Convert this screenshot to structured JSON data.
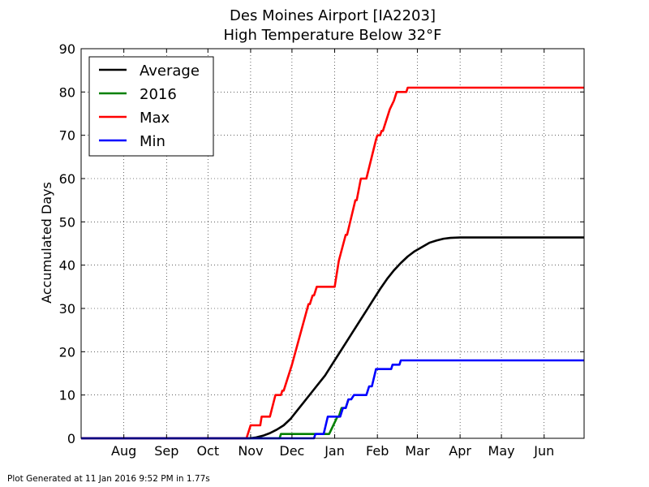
{
  "chart_data": {
    "type": "line",
    "title_lines": [
      "Des Moines Airport [IA2203]",
      "High Temperature Below 32°F"
    ],
    "ylabel": "Accumulated Days",
    "xlabel": "",
    "ylim": [
      0,
      90
    ],
    "yticks": [
      0,
      10,
      20,
      30,
      40,
      50,
      60,
      70,
      80,
      90
    ],
    "xlim_dates": [
      "2015-07-01",
      "2016-06-30"
    ],
    "xticks": [
      {
        "label": "Aug",
        "date": "2015-08-01"
      },
      {
        "label": "Sep",
        "date": "2015-09-01"
      },
      {
        "label": "Oct",
        "date": "2015-10-01"
      },
      {
        "label": "Nov",
        "date": "2015-11-01"
      },
      {
        "label": "Dec",
        "date": "2015-12-01"
      },
      {
        "label": "Jan",
        "date": "2016-01-01"
      },
      {
        "label": "Feb",
        "date": "2016-02-01"
      },
      {
        "label": "Mar",
        "date": "2016-03-01"
      },
      {
        "label": "Apr",
        "date": "2016-04-01"
      },
      {
        "label": "May",
        "date": "2016-05-01"
      },
      {
        "label": "Jun",
        "date": "2016-06-01"
      }
    ],
    "grid": true,
    "legend_position": "top-left",
    "series": [
      {
        "name": "Average",
        "color": "#000000",
        "points": [
          [
            "2015-07-01",
            0
          ],
          [
            "2015-10-31",
            0
          ],
          [
            "2015-11-05",
            0.2
          ],
          [
            "2015-11-10",
            0.6
          ],
          [
            "2015-11-15",
            1.2
          ],
          [
            "2015-11-20",
            2
          ],
          [
            "2015-11-25",
            3
          ],
          [
            "2015-11-30",
            4.5
          ],
          [
            "2015-12-05",
            6.5
          ],
          [
            "2015-12-10",
            8.5
          ],
          [
            "2015-12-15",
            10.5
          ],
          [
            "2015-12-20",
            12.5
          ],
          [
            "2015-12-25",
            14.5
          ],
          [
            "2015-12-30",
            17
          ],
          [
            "2016-01-04",
            19.5
          ],
          [
            "2016-01-09",
            22
          ],
          [
            "2016-01-14",
            24.5
          ],
          [
            "2016-01-19",
            27
          ],
          [
            "2016-01-24",
            29.5
          ],
          [
            "2016-01-29",
            32
          ],
          [
            "2016-02-03",
            34.5
          ],
          [
            "2016-02-08",
            36.8
          ],
          [
            "2016-02-13",
            38.8
          ],
          [
            "2016-02-18",
            40.5
          ],
          [
            "2016-02-23",
            42
          ],
          [
            "2016-02-28",
            43.2
          ],
          [
            "2016-03-05",
            44.3
          ],
          [
            "2016-03-10",
            45.2
          ],
          [
            "2016-03-15",
            45.7
          ],
          [
            "2016-03-20",
            46.1
          ],
          [
            "2016-03-25",
            46.3
          ],
          [
            "2016-04-01",
            46.4
          ],
          [
            "2016-06-30",
            46.4
          ]
        ]
      },
      {
        "name": "2016",
        "color": "#008000",
        "points": [
          [
            "2015-07-01",
            0
          ],
          [
            "2015-11-22",
            0
          ],
          [
            "2015-11-23",
            1
          ],
          [
            "2015-12-28",
            1
          ],
          [
            "2016-01-03",
            5
          ],
          [
            "2016-01-04",
            5
          ],
          [
            "2016-01-06",
            7
          ],
          [
            "2016-01-09",
            7
          ],
          [
            "2016-01-11",
            9
          ]
        ]
      },
      {
        "name": "Max",
        "color": "#ff0000",
        "points": [
          [
            "2015-07-01",
            0
          ],
          [
            "2015-10-29",
            0
          ],
          [
            "2015-11-01",
            3
          ],
          [
            "2015-11-08",
            3
          ],
          [
            "2015-11-09",
            5
          ],
          [
            "2015-11-15",
            5
          ],
          [
            "2015-11-19",
            10
          ],
          [
            "2015-11-23",
            10
          ],
          [
            "2015-11-24",
            11
          ],
          [
            "2015-11-25",
            11
          ],
          [
            "2015-12-01",
            17
          ],
          [
            "2015-12-13",
            31
          ],
          [
            "2015-12-14",
            31
          ],
          [
            "2015-12-16",
            33
          ],
          [
            "2015-12-17",
            33
          ],
          [
            "2015-12-19",
            35
          ],
          [
            "2015-12-22",
            35
          ],
          [
            "2016-01-01",
            35
          ],
          [
            "2016-01-04",
            41
          ],
          [
            "2016-01-09",
            47
          ],
          [
            "2016-01-10",
            47
          ],
          [
            "2016-01-16",
            55
          ],
          [
            "2016-01-17",
            55
          ],
          [
            "2016-01-20",
            60
          ],
          [
            "2016-01-24",
            60
          ],
          [
            "2016-01-31",
            69
          ],
          [
            "2016-02-01",
            70
          ],
          [
            "2016-02-03",
            70
          ],
          [
            "2016-02-04",
            71
          ],
          [
            "2016-02-05",
            71
          ],
          [
            "2016-02-10",
            76
          ],
          [
            "2016-02-13",
            78
          ],
          [
            "2016-02-15",
            80
          ],
          [
            "2016-02-22",
            80
          ],
          [
            "2016-02-23",
            81
          ],
          [
            "2016-06-30",
            81
          ]
        ]
      },
      {
        "name": "Min",
        "color": "#0000ff",
        "points": [
          [
            "2015-07-01",
            0
          ],
          [
            "2015-12-17",
            0
          ],
          [
            "2015-12-18",
            1
          ],
          [
            "2015-12-24",
            1
          ],
          [
            "2015-12-27",
            5
          ],
          [
            "2016-01-05",
            5
          ],
          [
            "2016-01-07",
            7
          ],
          [
            "2016-01-09",
            7
          ],
          [
            "2016-01-11",
            9
          ],
          [
            "2016-01-13",
            9
          ],
          [
            "2016-01-15",
            10
          ],
          [
            "2016-01-24",
            10
          ],
          [
            "2016-01-26",
            12
          ],
          [
            "2016-01-28",
            12
          ],
          [
            "2016-01-31",
            16
          ],
          [
            "2016-02-11",
            16
          ],
          [
            "2016-02-12",
            17
          ],
          [
            "2016-02-17",
            17
          ],
          [
            "2016-02-18",
            18
          ],
          [
            "2016-06-30",
            18
          ]
        ]
      }
    ]
  },
  "footer": "Plot Generated at 11 Jan 2016 9:52 PM in 1.77s"
}
